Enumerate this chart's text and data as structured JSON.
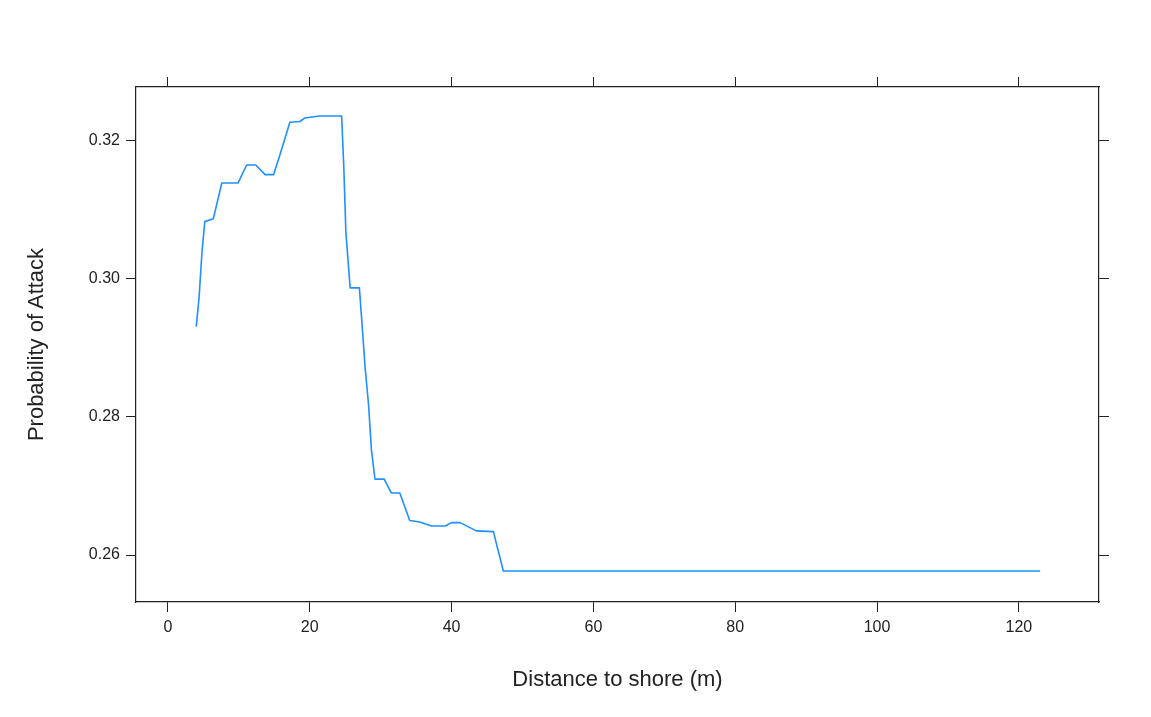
{
  "chart_data": {
    "type": "line",
    "xlabel": "Distance to shore (m)",
    "ylabel": "Probability of Attack",
    "xlim": [
      -4.5,
      131.3
    ],
    "xticks": [
      0,
      20,
      40,
      60,
      80,
      100,
      120
    ],
    "ylim": [
      0.2532,
      0.3278
    ],
    "yticks": [
      {
        "value": 0.26,
        "label": "0.26"
      },
      {
        "value": 0.28,
        "label": "0.28"
      },
      {
        "value": 0.3,
        "label": "0.30"
      },
      {
        "value": 0.32,
        "label": "0.32"
      }
    ],
    "grid": false,
    "legend": false,
    "marker": "none",
    "line_style": "solid",
    "series": [
      {
        "color": "#1e90ff",
        "x": [
          4.0,
          4.4,
          4.8,
          5.2,
          6.4,
          7.6,
          9.9,
          11.1,
          12.4,
          13.7,
          14.9,
          15.8,
          17.2,
          18.6,
          19.3,
          21.4,
          24.5,
          24.6,
          24.8,
          25.1,
          25.7,
          27.0,
          27.3,
          27.8,
          28.3,
          28.7,
          29.2,
          30.5,
          31.5,
          32.7,
          34.1,
          35.5,
          37.2,
          39.1,
          40.0,
          41.2,
          43.5,
          45.9,
          47.3,
          123.0
        ],
        "values": [
          0.2931,
          0.2974,
          0.3038,
          0.3083,
          0.3087,
          0.3139,
          0.3139,
          0.3165,
          0.3165,
          0.3151,
          0.3151,
          0.318,
          0.3227,
          0.3228,
          0.3233,
          0.3236,
          0.3236,
          0.3211,
          0.3163,
          0.3067,
          0.2987,
          0.2987,
          0.2945,
          0.2873,
          0.2817,
          0.2752,
          0.271,
          0.271,
          0.269,
          0.269,
          0.265,
          0.2648,
          0.2642,
          0.2642,
          0.2647,
          0.2647,
          0.2635,
          0.2634,
          0.2577,
          0.2577
        ]
      }
    ]
  }
}
